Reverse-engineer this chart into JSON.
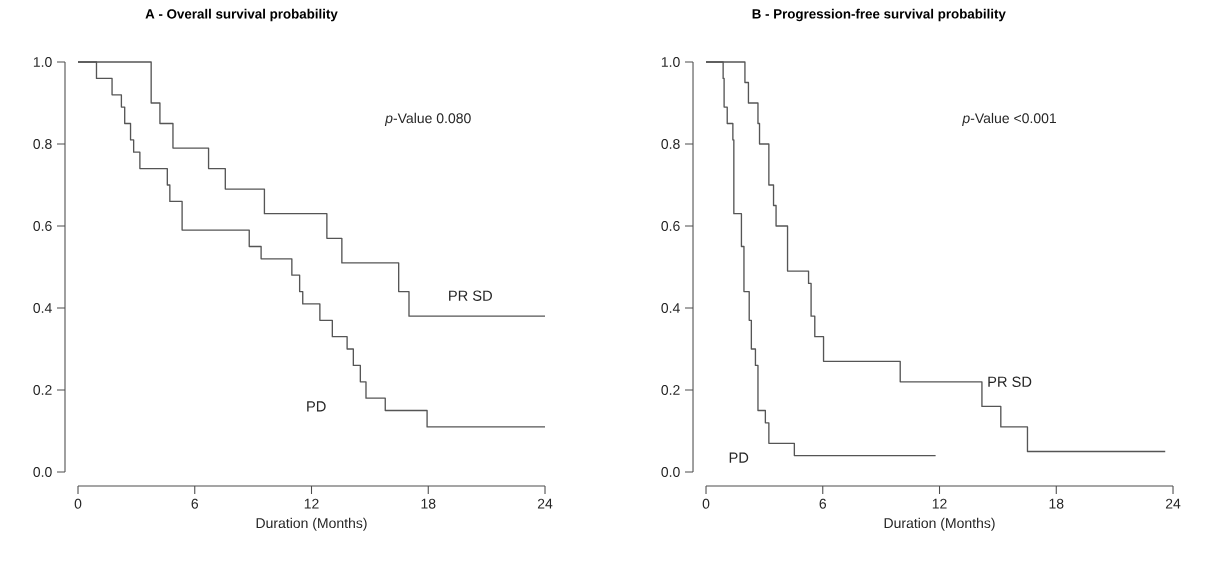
{
  "chart_data": [
    {
      "type": "step",
      "title": "A - Overall survival probability",
      "xlabel": "Duration (Months)",
      "xlim": [
        0,
        24
      ],
      "xticks": [
        0,
        6,
        12,
        18,
        24
      ],
      "ylim": [
        0,
        1
      ],
      "yticks": [
        {
          "value": 0,
          "label": "0.0"
        },
        {
          "value": 0.2,
          "label": "0.2"
        },
        {
          "value": 0.4,
          "label": "0.4"
        },
        {
          "value": 0.6,
          "label": "0.6"
        },
        {
          "value": 0.8,
          "label": "0.8"
        },
        {
          "value": 1,
          "label": "1.0"
        }
      ],
      "annotations": [
        "*p*-Value  0.080"
      ],
      "series": [
        {
          "name": "PR  SD",
          "color": "#555555",
          "x": [
            0,
            3.76,
            4.21,
            4.88,
            6.71,
            7.57,
            9.58,
            12.79,
            13.56,
            16.48,
            17.01,
            24
          ],
          "values": [
            1,
            0.9,
            0.85,
            0.79,
            0.74,
            0.69,
            0.63,
            0.57,
            0.51,
            0.44,
            0.38,
            0.38
          ]
        },
        {
          "name": "PD",
          "color": "#555555",
          "x": [
            0,
            0.95,
            1.75,
            2.23,
            2.4,
            2.7,
            2.86,
            3.18,
            4.59,
            4.72,
            5.35,
            8.8,
            9.41,
            10.99,
            11.39,
            11.55,
            12.43,
            13.07,
            13.83,
            14.15,
            14.51,
            14.8,
            15.79,
            17.94,
            24
          ],
          "values": [
            1,
            0.96,
            0.92,
            0.89,
            0.85,
            0.81,
            0.78,
            0.74,
            0.7,
            0.66,
            0.59,
            0.55,
            0.52,
            0.48,
            0.44,
            0.41,
            0.37,
            0.33,
            0.3,
            0.26,
            0.22,
            0.18,
            0.15,
            0.11,
            0.11
          ]
        }
      ]
    },
    {
      "type": "step",
      "title": "B - Progression-free survival probability",
      "xlabel": "Duration (Months)",
      "xlim": [
        0,
        24
      ],
      "xticks": [
        0,
        6,
        12,
        18,
        24
      ],
      "ylim": [
        0,
        1
      ],
      "yticks": [
        {
          "value": 0,
          "label": "0.0"
        },
        {
          "value": 0.2,
          "label": "0.2"
        },
        {
          "value": 0.4,
          "label": "0.4"
        },
        {
          "value": 0.6,
          "label": "0.6"
        },
        {
          "value": 0.8,
          "label": "0.8"
        },
        {
          "value": 1,
          "label": "1.0"
        }
      ],
      "annotations": [
        "*p*-Value  <0.001"
      ],
      "series": [
        {
          "name": "PR  SD",
          "color": "#555555",
          "x": [
            0,
            2.0,
            2.18,
            2.67,
            2.75,
            3.23,
            3.47,
            3.6,
            4.19,
            5.27,
            5.4,
            5.59,
            6.04,
            9.98,
            14.18,
            15.15,
            16.52,
            23.6
          ],
          "values": [
            1,
            0.95,
            0.9,
            0.85,
            0.8,
            0.7,
            0.65,
            0.6,
            0.49,
            0.46,
            0.38,
            0.33,
            0.27,
            0.22,
            0.16,
            0.11,
            0.05,
            0.05
          ]
        },
        {
          "name": "PD",
          "color": "#555555",
          "x": [
            0,
            0.88,
            0.93,
            1.09,
            1.38,
            1.43,
            1.82,
            1.95,
            2.22,
            2.33,
            2.54,
            2.67,
            3.05,
            3.23,
            4.54,
            11.8
          ],
          "values": [
            1,
            0.96,
            0.89,
            0.85,
            0.81,
            0.63,
            0.55,
            0.44,
            0.37,
            0.3,
            0.26,
            0.15,
            0.12,
            0.07,
            0.04,
            0.04
          ]
        }
      ]
    }
  ]
}
